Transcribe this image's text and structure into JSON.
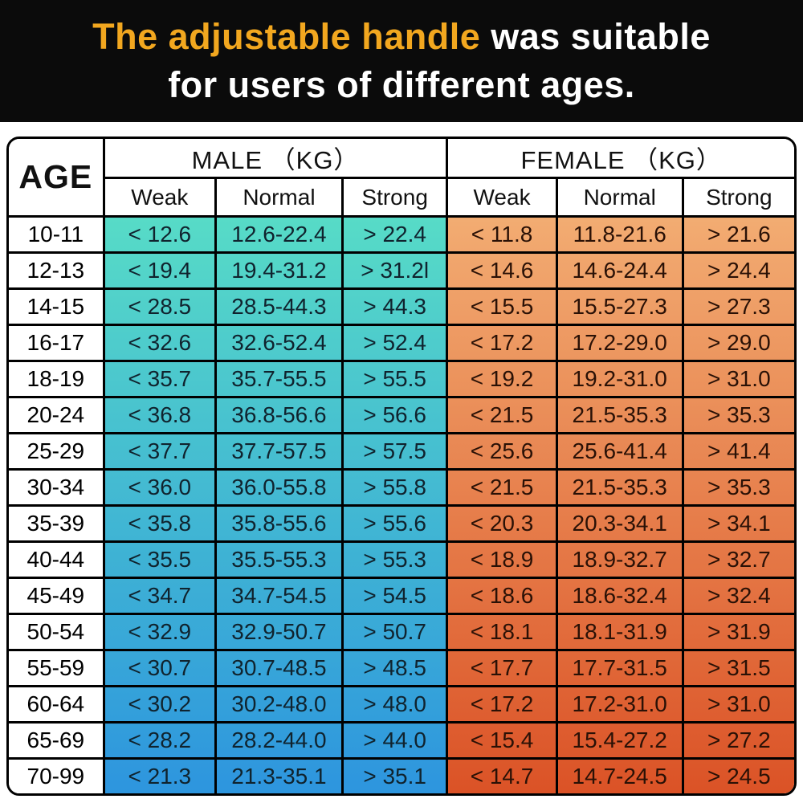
{
  "title": {
    "highlight": "The adjustable handle",
    "rest": " was suitable",
    "line2": "for users of different ages.",
    "highlight_color": "#f2a71f",
    "text_color": "#ffffff",
    "background": "#0b0b0b"
  },
  "table": {
    "age_header": "AGE",
    "male_group_label": "MALE （KG）",
    "female_group_label": "FEMALE （KG）",
    "sub_headers": [
      "Weak",
      "Normal",
      "Strong"
    ],
    "colors": {
      "male_top": "#57dbc7",
      "male_bottom": "#2d95de",
      "female_top": "#f2ac72",
      "female_bottom": "#db5226",
      "male_text": "#10232e",
      "female_text": "#2a1106",
      "border": "#000000"
    },
    "rows": [
      {
        "age": "10-11",
        "male": [
          "< 12.6",
          "12.6-22.4",
          "> 22.4"
        ],
        "female": [
          "< 11.8",
          "11.8-21.6",
          "> 21.6"
        ]
      },
      {
        "age": "12-13",
        "male": [
          "< 19.4",
          "19.4-31.2",
          "> 31.2l"
        ],
        "female": [
          "< 14.6",
          "14.6-24.4",
          "> 24.4"
        ]
      },
      {
        "age": "14-15",
        "male": [
          "< 28.5",
          "28.5-44.3",
          "> 44.3"
        ],
        "female": [
          "< 15.5",
          "15.5-27.3",
          "> 27.3"
        ]
      },
      {
        "age": "16-17",
        "male": [
          "< 32.6",
          "32.6-52.4",
          "> 52.4"
        ],
        "female": [
          "< 17.2",
          "17.2-29.0",
          "> 29.0"
        ]
      },
      {
        "age": "18-19",
        "male": [
          "< 35.7",
          "35.7-55.5",
          "> 55.5"
        ],
        "female": [
          "< 19.2",
          "19.2-31.0",
          "> 31.0"
        ]
      },
      {
        "age": "20-24",
        "male": [
          "< 36.8",
          "36.8-56.6",
          "> 56.6"
        ],
        "female": [
          "< 21.5",
          "21.5-35.3",
          "> 35.3"
        ]
      },
      {
        "age": "25-29",
        "male": [
          "< 37.7",
          "37.7-57.5",
          "> 57.5"
        ],
        "female": [
          "< 25.6",
          "25.6-41.4",
          "> 41.4"
        ]
      },
      {
        "age": "30-34",
        "male": [
          "< 36.0",
          "36.0-55.8",
          "> 55.8"
        ],
        "female": [
          "< 21.5",
          "21.5-35.3",
          "> 35.3"
        ]
      },
      {
        "age": "35-39",
        "male": [
          "< 35.8",
          "35.8-55.6",
          "> 55.6"
        ],
        "female": [
          "< 20.3",
          "20.3-34.1",
          "> 34.1"
        ]
      },
      {
        "age": "40-44",
        "male": [
          "< 35.5",
          "35.5-55.3",
          "> 55.3"
        ],
        "female": [
          "< 18.9",
          "18.9-32.7",
          "> 32.7"
        ]
      },
      {
        "age": "45-49",
        "male": [
          "< 34.7",
          "34.7-54.5",
          "> 54.5"
        ],
        "female": [
          "< 18.6",
          "18.6-32.4",
          "> 32.4"
        ]
      },
      {
        "age": "50-54",
        "male": [
          "< 32.9",
          "32.9-50.7",
          "> 50.7"
        ],
        "female": [
          "< 18.1",
          "18.1-31.9",
          "> 31.9"
        ]
      },
      {
        "age": "55-59",
        "male": [
          "< 30.7",
          "30.7-48.5",
          "> 48.5"
        ],
        "female": [
          "< 17.7",
          "17.7-31.5",
          "> 31.5"
        ]
      },
      {
        "age": "60-64",
        "male": [
          "< 30.2",
          "30.2-48.0",
          "> 48.0"
        ],
        "female": [
          "< 17.2",
          "17.2-31.0",
          "> 31.0"
        ]
      },
      {
        "age": "65-69",
        "male": [
          "< 28.2",
          "28.2-44.0",
          "> 44.0"
        ],
        "female": [
          "< 15.4",
          "15.4-27.2",
          "> 27.2"
        ]
      },
      {
        "age": "70-99",
        "male": [
          "< 21.3",
          "21.3-35.1",
          "> 35.1"
        ],
        "female": [
          "< 14.7",
          "14.7-24.5",
          "> 24.5"
        ]
      }
    ]
  }
}
